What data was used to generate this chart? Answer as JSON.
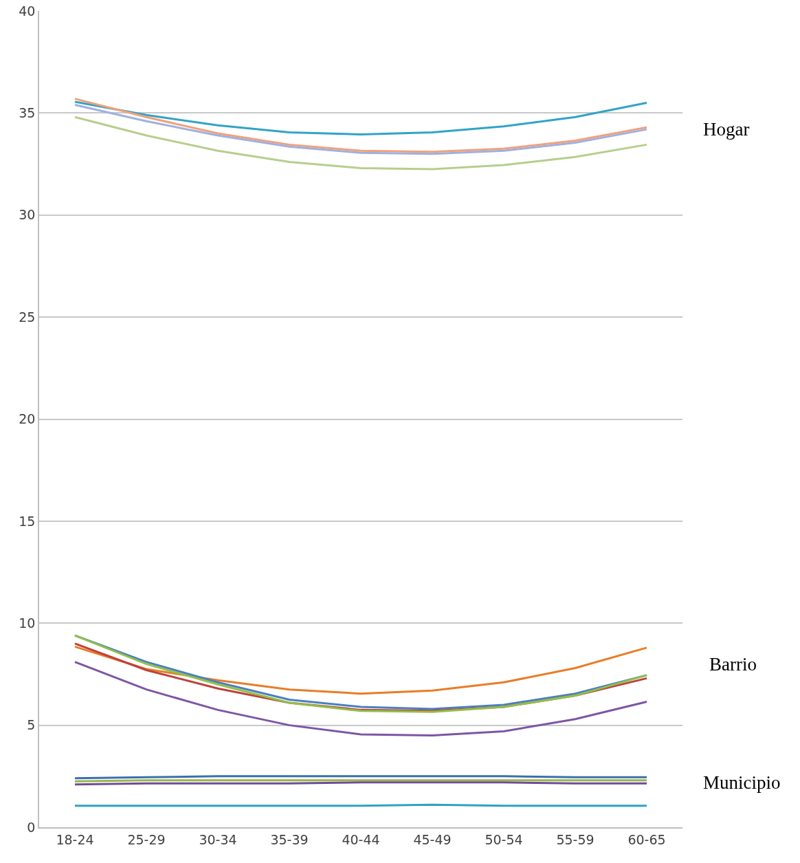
{
  "chart_data": {
    "type": "line",
    "categories": [
      "18-24",
      "25-29",
      "30-34",
      "35-39",
      "40-44",
      "45-49",
      "50-54",
      "55-59",
      "60-65"
    ],
    "series": [
      {
        "color": "#31a3c6",
        "values": [
          35.55,
          34.9,
          34.4,
          34.05,
          33.95,
          34.05,
          34.35,
          34.8,
          35.5
        ]
      },
      {
        "color": "#f2a07a",
        "values": [
          35.7,
          34.8,
          34.0,
          33.45,
          33.15,
          33.1,
          33.25,
          33.65,
          34.3
        ]
      },
      {
        "color": "#9fb0e0",
        "values": [
          35.4,
          34.6,
          33.9,
          33.35,
          33.05,
          33.0,
          33.15,
          33.55,
          34.2
        ]
      },
      {
        "color": "#b5cf8c",
        "values": [
          34.8,
          33.9,
          33.15,
          32.6,
          32.3,
          32.25,
          32.45,
          32.85,
          33.45
        ]
      },
      {
        "color": "#e87d27",
        "values": [
          8.85,
          7.75,
          7.2,
          6.75,
          6.55,
          6.7,
          7.1,
          7.8,
          8.8
        ]
      },
      {
        "color": "#4a7fc1",
        "values": [
          9.4,
          8.1,
          7.1,
          6.25,
          5.9,
          5.8,
          6.0,
          6.55,
          7.45
        ]
      },
      {
        "color": "#c0403a",
        "values": [
          9.0,
          7.7,
          6.8,
          6.1,
          5.75,
          5.7,
          5.9,
          6.45,
          7.3
        ]
      },
      {
        "color": "#8fc04a",
        "values": [
          9.4,
          8.0,
          7.0,
          6.1,
          5.7,
          5.65,
          5.9,
          6.45,
          7.45
        ]
      },
      {
        "color": "#7d55a5",
        "values": [
          8.1,
          6.75,
          5.75,
          5.0,
          4.55,
          4.5,
          4.7,
          5.3,
          6.15
        ]
      },
      {
        "color": "#3a6fb0",
        "values": [
          2.4,
          2.45,
          2.5,
          2.5,
          2.5,
          2.5,
          2.5,
          2.45,
          2.45
        ]
      },
      {
        "color": "#9ab548",
        "values": [
          2.25,
          2.3,
          2.3,
          2.3,
          2.3,
          2.3,
          2.3,
          2.3,
          2.3
        ]
      },
      {
        "color": "#6f4c98",
        "values": [
          2.1,
          2.15,
          2.15,
          2.15,
          2.2,
          2.2,
          2.2,
          2.15,
          2.15
        ]
      },
      {
        "color": "#2fa2bf",
        "values": [
          1.05,
          1.05,
          1.05,
          1.05,
          1.05,
          1.1,
          1.05,
          1.05,
          1.05
        ]
      }
    ],
    "ylim": [
      0,
      40
    ],
    "yticks": [
      0,
      5,
      10,
      15,
      20,
      25,
      30,
      35,
      40
    ],
    "grid": "y",
    "marker": "none",
    "line_style": "solid",
    "annotations": [
      "Hogar",
      "Barrio",
      "Municipio"
    ]
  }
}
